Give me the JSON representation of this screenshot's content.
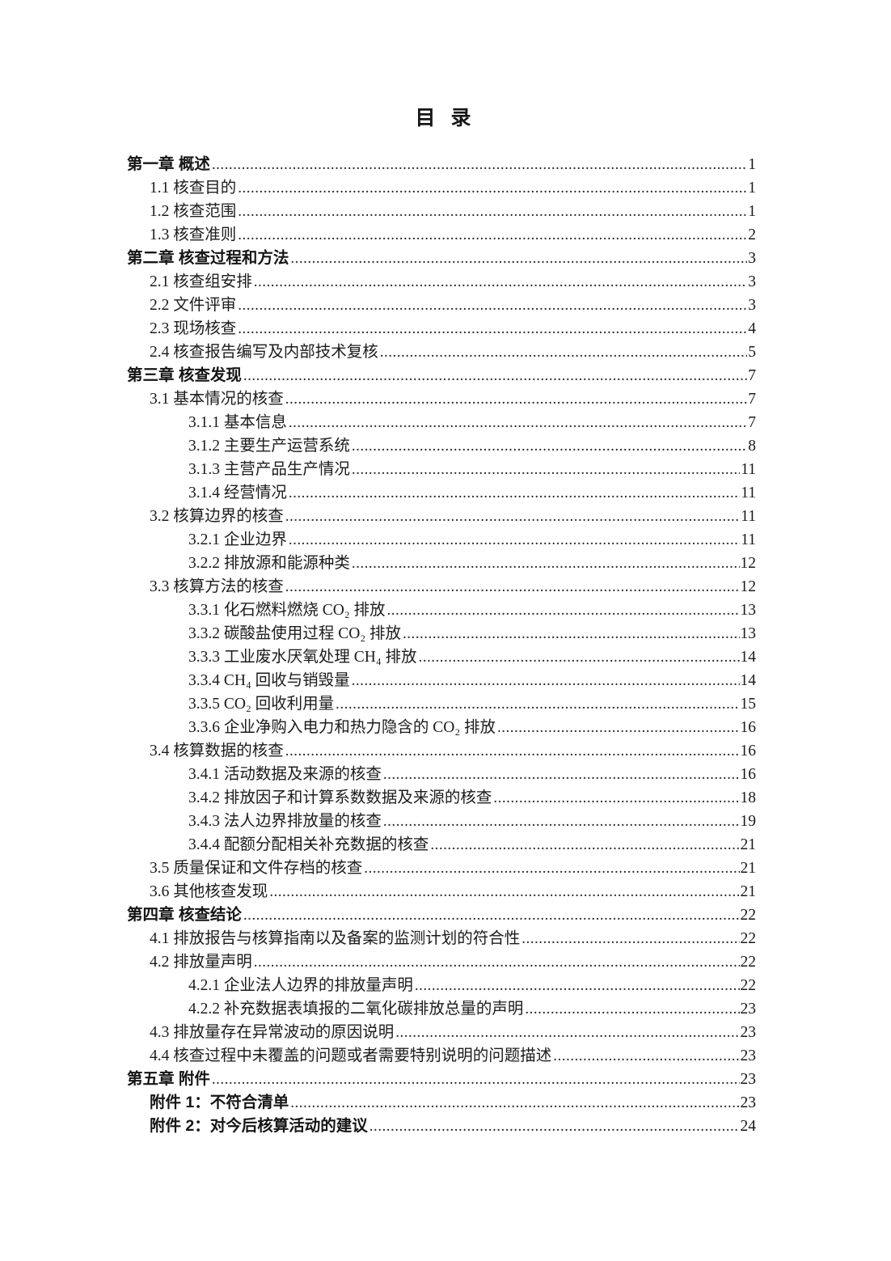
{
  "page": {
    "title": "目 录"
  },
  "toc": {
    "leader_char": ".",
    "entries": [
      {
        "level": "chapter",
        "label": "第一章 概述",
        "page": "1"
      },
      {
        "level": "l2",
        "label": "1.1 核查目的",
        "page": "1"
      },
      {
        "level": "l2",
        "label": "1.2 核查范围",
        "page": "1"
      },
      {
        "level": "l2",
        "label": "1.3 核查准则",
        "page": "2"
      },
      {
        "level": "chapter",
        "label": "第二章 核查过程和方法",
        "page": "3"
      },
      {
        "level": "l2",
        "label": "2.1 核查组安排",
        "page": "3"
      },
      {
        "level": "l2",
        "label": "2.2 文件评审",
        "page": "3"
      },
      {
        "level": "l2",
        "label": "2.3 现场核查",
        "page": "4"
      },
      {
        "level": "l2",
        "label": "2.4 核查报告编写及内部技术复核",
        "page": "5"
      },
      {
        "level": "chapter",
        "label": "第三章 核查发现",
        "page": "7"
      },
      {
        "level": "l2",
        "label": "3.1 基本情况的核查",
        "page": "7"
      },
      {
        "level": "l3",
        "label": "3.1.1 基本信息",
        "page": "7"
      },
      {
        "level": "l3",
        "label": "3.1.2 主要生产运营系统",
        "page": "8"
      },
      {
        "level": "l3",
        "label": "3.1.3 主营产品生产情况",
        "page": "11"
      },
      {
        "level": "l3",
        "label": "3.1.4 经营情况",
        "page": "11"
      },
      {
        "level": "l2",
        "label": "3.2 核算边界的核查",
        "page": "11"
      },
      {
        "level": "l3",
        "label": "3.2.1 企业边界",
        "page": "11"
      },
      {
        "level": "l3",
        "label": "3.2.2 排放源和能源种类",
        "page": "12"
      },
      {
        "level": "l2",
        "label": "3.3 核算方法的核查",
        "page": "12"
      },
      {
        "level": "l3",
        "label": "3.3.1 化石燃料燃烧 CO₂ 排放",
        "page": "13"
      },
      {
        "level": "l3",
        "label": "3.3.2 碳酸盐使用过程 CO₂ 排放",
        "page": "13"
      },
      {
        "level": "l3",
        "label": "3.3.3 工业废水厌氧处理 CH₄ 排放",
        "page": "14"
      },
      {
        "level": "l3",
        "label": "3.3.4 CH₄ 回收与销毁量",
        "page": "14"
      },
      {
        "level": "l3",
        "label": "3.3.5 CO₂ 回收利用量",
        "page": "15"
      },
      {
        "level": "l3",
        "label": "3.3.6 企业净购入电力和热力隐含的 CO₂ 排放",
        "page": "16"
      },
      {
        "level": "l2",
        "label": "3.4 核算数据的核查",
        "page": "16"
      },
      {
        "level": "l3",
        "label": "3.4.1 活动数据及来源的核查",
        "page": "16"
      },
      {
        "level": "l3",
        "label": "3.4.2 排放因子和计算系数数据及来源的核查",
        "page": "18"
      },
      {
        "level": "l3",
        "label": "3.4.3 法人边界排放量的核查",
        "page": "19"
      },
      {
        "level": "l3",
        "label": "3.4.4 配额分配相关补充数据的核查",
        "page": "21"
      },
      {
        "level": "l2",
        "label": "3.5 质量保证和文件存档的核查",
        "page": "21"
      },
      {
        "level": "l2",
        "label": "3.6 其他核查发现",
        "page": "21"
      },
      {
        "level": "chapter",
        "label": "第四章 核查结论",
        "page": "22"
      },
      {
        "level": "l2",
        "label": "4.1 排放报告与核算指南以及备案的监测计划的符合性",
        "page": "22"
      },
      {
        "level": "l2",
        "label": "4.2 排放量声明",
        "page": "22"
      },
      {
        "level": "l3",
        "label": "4.2.1 企业法人边界的排放量声明",
        "page": "22"
      },
      {
        "level": "l3",
        "label": "4.2.2 补充数据表填报的二氧化碳排放总量的声明",
        "page": "23"
      },
      {
        "level": "l2",
        "label": "4.3 排放量存在异常波动的原因说明",
        "page": "23"
      },
      {
        "level": "l2",
        "label": "4.4 核查过程中未覆盖的问题或者需要特别说明的问题描述",
        "page": "23"
      },
      {
        "level": "chapter",
        "label": "第五章 附件",
        "page": "23"
      },
      {
        "level": "appendix",
        "label": "附件 1：不符合清单",
        "page": "23"
      },
      {
        "level": "appendix",
        "label": "附件 2：对今后核算活动的建议",
        "page": "24"
      }
    ]
  }
}
